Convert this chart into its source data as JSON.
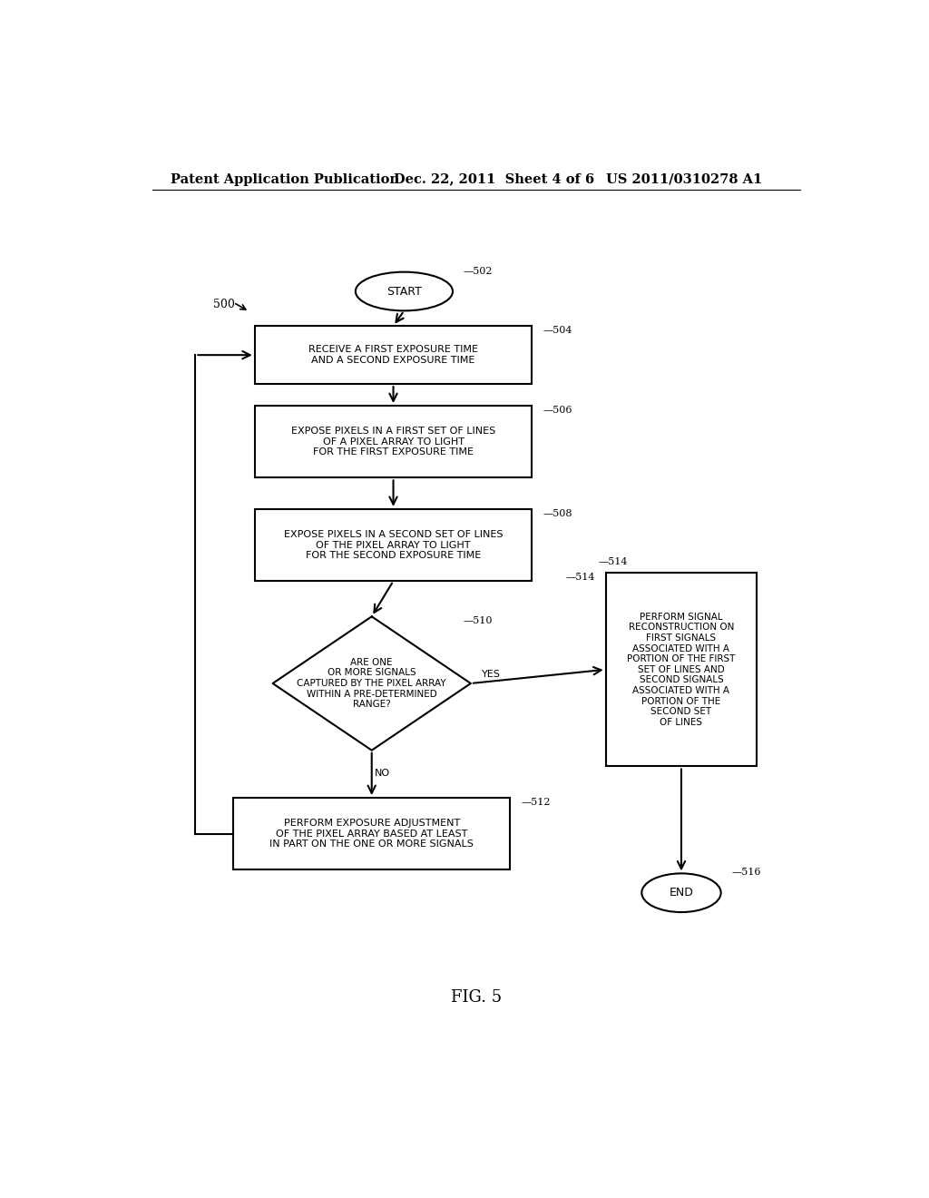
{
  "bg_color": "#ffffff",
  "header_left": "Patent Application Publication",
  "header_mid": "Dec. 22, 2011  Sheet 4 of 6",
  "header_right": "US 2011/0310278 A1",
  "fig_label": "FIG. 5",
  "start_label": "START",
  "start_id": "502",
  "box504_label": "RECEIVE A FIRST EXPOSURE TIME\nAND A SECOND EXPOSURE TIME",
  "box504_id": "504",
  "box506_label": "EXPOSE PIXELS IN A FIRST SET OF LINES\nOF A PIXEL ARRAY TO LIGHT\nFOR THE FIRST EXPOSURE TIME",
  "box506_id": "506",
  "box508_label": "EXPOSE PIXELS IN A SECOND SET OF LINES\nOF THE PIXEL ARRAY TO LIGHT\nFOR THE SECOND EXPOSURE TIME",
  "box508_id": "508",
  "diamond510_label": "ARE ONE\nOR MORE SIGNALS\nCAPTURED BY THE PIXEL ARRAY\nWITHIN A PRE-DETERMINED\nRANGE?",
  "diamond510_id": "510",
  "box512_label": "PERFORM EXPOSURE ADJUSTMENT\nOF THE PIXEL ARRAY BASED AT LEAST\nIN PART ON THE ONE OR MORE SIGNALS",
  "box512_id": "512",
  "box514_label": "PERFORM SIGNAL\nRECONSTRUCTION ON\nFIRST SIGNALS\nASSOCIATED WITH A\nPORTION OF THE FIRST\nSET OF LINES AND\nSECOND SIGNALS\nASSOCIATED WITH A\nPORTION OF THE\nSECOND SET\nOF LINES",
  "box514_id": "514",
  "end_label": "END",
  "end_id": "516",
  "label500": "500",
  "yes_label": "YES",
  "no_label": "NO"
}
